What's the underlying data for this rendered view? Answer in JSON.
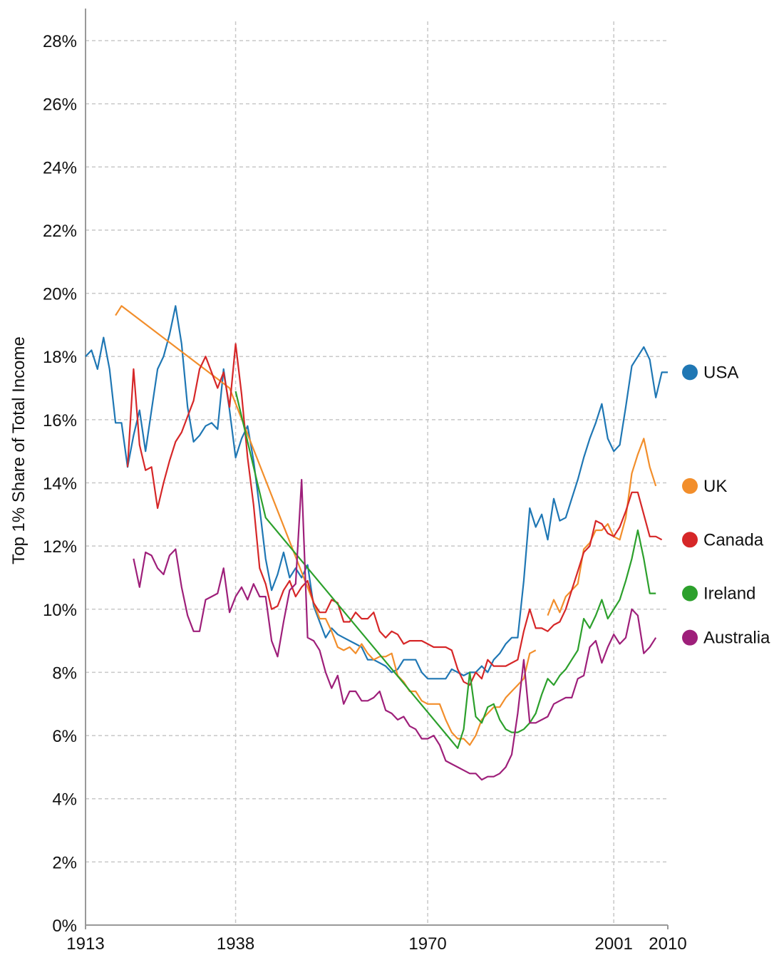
{
  "chart_data": {
    "type": "line",
    "y_label": "Top 1% Share of Total Income",
    "xlim": [
      1913,
      2010
    ],
    "xticks": [
      1913,
      1938,
      1970,
      2001,
      2010
    ],
    "ylim": [
      0,
      28
    ],
    "yticks": [
      {
        "value": 0,
        "label": "0%"
      },
      {
        "value": 2,
        "label": "2%"
      },
      {
        "value": 4,
        "label": "4%"
      },
      {
        "value": 6,
        "label": "6%"
      },
      {
        "value": 8,
        "label": "8%"
      },
      {
        "value": 10,
        "label": "10%"
      },
      {
        "value": 12,
        "label": "12%"
      },
      {
        "value": 14,
        "label": "14%"
      },
      {
        "value": 16,
        "label": "16%"
      },
      {
        "value": 18,
        "label": "18%"
      },
      {
        "value": 20,
        "label": "20%"
      },
      {
        "value": 22,
        "label": "22%"
      },
      {
        "value": 24,
        "label": "24%"
      },
      {
        "value": 26,
        "label": "26%"
      },
      {
        "value": 28,
        "label": "28%"
      }
    ],
    "grid": true,
    "series": [
      {
        "name": "USA",
        "color": "#1f77b4",
        "x": [
          1913,
          1914,
          1915,
          1916,
          1917,
          1918,
          1919,
          1920,
          1921,
          1922,
          1923,
          1924,
          1925,
          1926,
          1927,
          1928,
          1929,
          1930,
          1931,
          1932,
          1933,
          1934,
          1935,
          1936,
          1937,
          1938,
          1939,
          1940,
          1941,
          1942,
          1943,
          1944,
          1945,
          1946,
          1947,
          1948,
          1949,
          1950,
          1951,
          1952,
          1953,
          1954,
          1955,
          1956,
          1957,
          1958,
          1959,
          1960,
          1961,
          1962,
          1963,
          1964,
          1965,
          1966,
          1967,
          1968,
          1969,
          1970,
          1971,
          1972,
          1973,
          1974,
          1975,
          1976,
          1977,
          1978,
          1979,
          1980,
          1981,
          1982,
          1983,
          1984,
          1985,
          1986,
          1987,
          1988,
          1989,
          1990,
          1991,
          1992,
          1993,
          1994,
          1995,
          1996,
          1997,
          1998,
          1999,
          2000,
          2001,
          2002,
          2003,
          2004,
          2005,
          2006,
          2007,
          2008,
          2009,
          2010
        ],
        "values": [
          18.0,
          18.2,
          17.6,
          18.6,
          17.6,
          15.9,
          15.9,
          14.5,
          15.5,
          16.3,
          15.0,
          16.3,
          17.6,
          18.0,
          18.7,
          19.6,
          18.4,
          16.4,
          15.3,
          15.5,
          15.8,
          15.9,
          15.7,
          17.6,
          16.3,
          14.8,
          15.4,
          15.8,
          14.7,
          13.2,
          11.6,
          10.6,
          11.1,
          11.8,
          11.0,
          11.3,
          11.0,
          11.4,
          10.1,
          9.6,
          9.1,
          9.4,
          9.2,
          9.1,
          9.0,
          8.9,
          8.8,
          8.4,
          8.4,
          8.3,
          8.2,
          8.0,
          8.1,
          8.4,
          8.4,
          8.4,
          8.0,
          7.8,
          7.8,
          7.8,
          7.8,
          8.1,
          8.0,
          7.9,
          8.0,
          8.0,
          8.2,
          8.0,
          8.4,
          8.6,
          8.9,
          9.1,
          9.1,
          10.9,
          13.2,
          12.6,
          13.0,
          12.2,
          13.5,
          12.8,
          12.9,
          13.5,
          14.1,
          14.8,
          15.4,
          15.9,
          16.5,
          15.4,
          15.0,
          15.2,
          16.4,
          17.7,
          18.0,
          18.3,
          17.9,
          16.7,
          17.5,
          17.5
        ]
      },
      {
        "name": "UK",
        "color": "#f28e2b",
        "x": [
          1918,
          1919,
          1937,
          1951,
          1952,
          1953,
          1954,
          1955,
          1956,
          1957,
          1958,
          1959,
          1960,
          1961,
          1962,
          1963,
          1964,
          1965,
          1966,
          1967,
          1968,
          1969,
          1970,
          1971,
          1972,
          1973,
          1974,
          1975,
          1976,
          1977,
          1978,
          1979,
          1980,
          1981,
          1982,
          1983,
          1984,
          1985,
          1986,
          1987,
          1988,
          1989,
          1990,
          1991,
          1992,
          1993,
          1994,
          1995,
          1996,
          1997,
          1998,
          1999,
          2000,
          2001,
          2002,
          2003,
          2004,
          2005,
          2006,
          2007,
          2008
        ],
        "values": [
          19.3,
          19.6,
          17.0,
          10.2,
          9.7,
          9.7,
          9.3,
          8.8,
          8.7,
          8.8,
          8.6,
          8.9,
          8.6,
          8.4,
          8.5,
          8.5,
          8.6,
          7.9,
          7.7,
          7.4,
          7.4,
          7.1,
          7.0,
          7.0,
          7.0,
          6.5,
          6.1,
          5.9,
          5.9,
          5.7,
          6.0,
          6.5,
          6.7,
          6.9,
          6.9,
          7.2,
          7.4,
          7.6,
          7.8,
          8.6,
          8.7,
          null,
          9.8,
          10.3,
          9.9,
          10.4,
          10.6,
          10.8,
          11.9,
          12.1,
          12.5,
          12.5,
          12.7,
          12.3,
          12.2,
          12.9,
          14.3,
          14.9,
          15.4,
          14.5,
          13.9
        ]
      },
      {
        "name": "Canada",
        "color": "#d62728",
        "x": [
          1920,
          1921,
          1922,
          1923,
          1924,
          1925,
          1926,
          1927,
          1928,
          1929,
          1930,
          1931,
          1932,
          1933,
          1934,
          1935,
          1936,
          1937,
          1938,
          1939,
          1940,
          1941,
          1942,
          1943,
          1944,
          1945,
          1946,
          1947,
          1948,
          1949,
          1950,
          1951,
          1952,
          1953,
          1954,
          1955,
          1956,
          1957,
          1958,
          1959,
          1960,
          1961,
          1962,
          1963,
          1964,
          1965,
          1966,
          1967,
          1968,
          1969,
          1970,
          1971,
          1972,
          1973,
          1974,
          1975,
          1976,
          1977,
          1978,
          1979,
          1980,
          1981,
          1982,
          1983,
          1984,
          1985,
          1986,
          1987,
          1988,
          1989,
          1990,
          1991,
          1992,
          1993,
          1994,
          1995,
          1996,
          1997,
          1998,
          1999,
          2000,
          2001,
          2002,
          2003,
          2004,
          2005,
          2006,
          2007,
          2008,
          2009
        ],
        "values": [
          14.5,
          17.6,
          15.2,
          14.4,
          14.5,
          13.2,
          14.0,
          14.7,
          15.3,
          15.6,
          16.1,
          16.6,
          17.6,
          18.0,
          17.5,
          17.0,
          17.5,
          16.4,
          18.4,
          16.8,
          14.8,
          13.3,
          11.3,
          10.8,
          10.0,
          10.1,
          10.6,
          10.9,
          10.4,
          10.7,
          10.9,
          10.2,
          9.9,
          9.9,
          10.3,
          10.2,
          9.6,
          9.6,
          9.9,
          9.7,
          9.7,
          9.9,
          9.3,
          9.1,
          9.3,
          9.2,
          8.9,
          9.0,
          9.0,
          9.0,
          8.9,
          8.8,
          8.8,
          8.8,
          8.7,
          8.1,
          7.7,
          7.6,
          8.0,
          7.8,
          8.4,
          8.2,
          8.2,
          8.2,
          8.3,
          8.4,
          9.3,
          10.0,
          9.4,
          9.4,
          9.3,
          9.5,
          9.6,
          10.0,
          10.6,
          11.2,
          11.8,
          12.0,
          12.8,
          12.7,
          12.4,
          12.3,
          12.6,
          13.1,
          13.7,
          13.7,
          13.0,
          12.3,
          12.3,
          12.2
        ]
      },
      {
        "name": "Ireland",
        "color": "#2ca02c",
        "x": [
          1938,
          1943,
          1975,
          1976,
          1977,
          1978,
          1979,
          1980,
          1981,
          1982,
          1983,
          1984,
          1985,
          1986,
          1987,
          1988,
          1989,
          1990,
          1991,
          1992,
          1993,
          1994,
          1995,
          1996,
          1997,
          1998,
          1999,
          2000,
          2001,
          2002,
          2003,
          2004,
          2005,
          2006,
          2007,
          2008
        ],
        "values": [
          16.9,
          12.9,
          5.6,
          6.2,
          8.0,
          6.6,
          6.4,
          6.9,
          7.0,
          6.5,
          6.2,
          6.1,
          6.1,
          6.2,
          6.4,
          6.7,
          7.3,
          7.8,
          7.6,
          7.9,
          8.1,
          8.4,
          8.7,
          9.7,
          9.4,
          9.8,
          10.3,
          9.7,
          10.0,
          10.3,
          10.9,
          11.6,
          12.5,
          11.6,
          10.5,
          10.5
        ]
      },
      {
        "name": "Australia",
        "color": "#9e1f7a",
        "x": [
          1921,
          1922,
          1923,
          1924,
          1925,
          1926,
          1927,
          1928,
          1929,
          1930,
          1931,
          1932,
          1933,
          1934,
          1935,
          1936,
          1937,
          1938,
          1939,
          1940,
          1941,
          1942,
          1943,
          1944,
          1945,
          1946,
          1947,
          1948,
          1949,
          1950,
          1951,
          1952,
          1953,
          1954,
          1955,
          1956,
          1957,
          1958,
          1959,
          1960,
          1961,
          1962,
          1963,
          1964,
          1965,
          1966,
          1967,
          1968,
          1969,
          1970,
          1971,
          1972,
          1973,
          1974,
          1975,
          1976,
          1977,
          1978,
          1979,
          1980,
          1981,
          1982,
          1983,
          1984,
          1985,
          1986,
          1987,
          1988,
          1989,
          1990,
          1991,
          1992,
          1993,
          1994,
          1995,
          1996,
          1997,
          1998,
          1999,
          2000,
          2001,
          2002,
          2003,
          2004,
          2005,
          2006,
          2007,
          2008
        ],
        "values": [
          11.6,
          10.7,
          11.8,
          11.7,
          11.3,
          11.1,
          11.7,
          11.9,
          10.7,
          9.8,
          9.3,
          9.3,
          10.3,
          10.4,
          10.5,
          11.3,
          9.9,
          10.4,
          10.7,
          10.3,
          10.8,
          10.4,
          10.4,
          9.0,
          8.5,
          9.6,
          10.6,
          10.8,
          14.1,
          9.1,
          9.0,
          8.7,
          8.0,
          7.5,
          7.9,
          7.0,
          7.4,
          7.4,
          7.1,
          7.1,
          7.2,
          7.4,
          6.8,
          6.7,
          6.5,
          6.6,
          6.3,
          6.2,
          5.9,
          5.9,
          6.0,
          5.7,
          5.2,
          5.1,
          5.0,
          4.9,
          4.8,
          4.8,
          4.6,
          4.7,
          4.7,
          4.8,
          5.0,
          5.4,
          6.7,
          8.4,
          6.4,
          6.4,
          6.5,
          6.6,
          7.0,
          7.1,
          7.2,
          7.2,
          7.8,
          7.9,
          8.8,
          9.0,
          8.3,
          8.8,
          9.2,
          8.9,
          9.1,
          10.0,
          9.8,
          8.6,
          8.8,
          9.1
        ]
      }
    ]
  }
}
